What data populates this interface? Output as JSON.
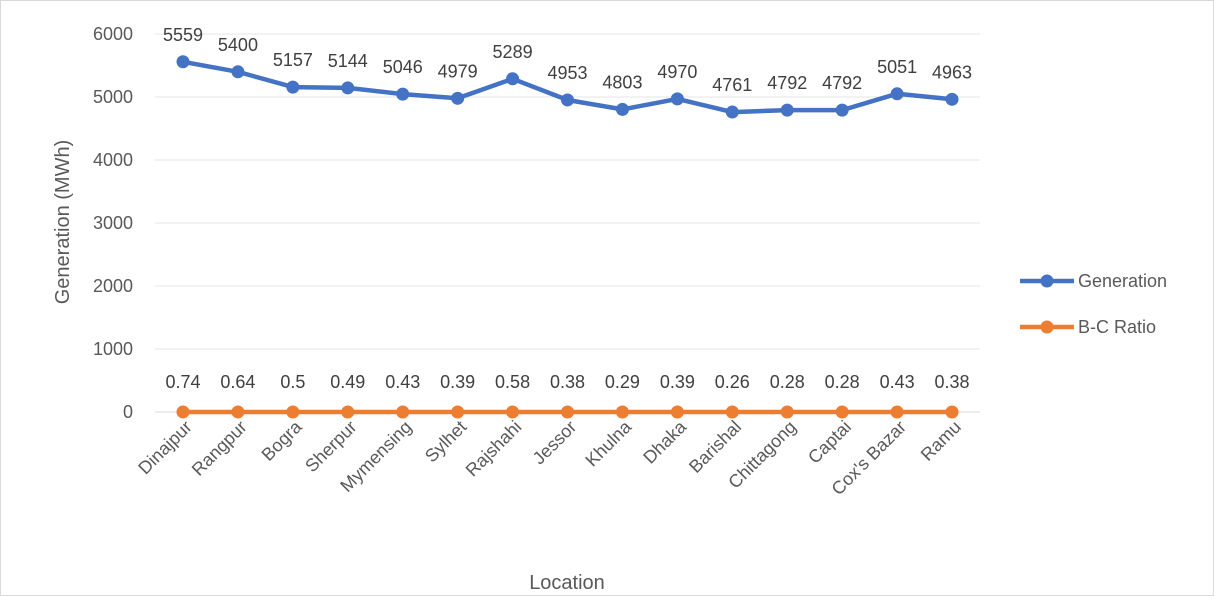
{
  "chart_data": {
    "type": "line",
    "title": "",
    "xlabel": "Location",
    "ylabel": "Generation (MWh)",
    "ylim": [
      0,
      6000
    ],
    "yticks": [
      0,
      1000,
      2000,
      3000,
      4000,
      5000,
      6000
    ],
    "grid": "horizontal",
    "legend_position": "right",
    "categories": [
      "Dinajpur",
      "Rangpur",
      "Bogra",
      "Sherpur",
      "Mymensing",
      "Sylhet",
      "Rajshahi",
      "Jessor",
      "Khulna",
      "Dhaka",
      "Barishal",
      "Chittagong",
      "Captai",
      "Cox's Bazar",
      "Ramu"
    ],
    "series": [
      {
        "name": "Generation",
        "color": "#4472c4",
        "values": [
          5559,
          5400,
          5157,
          5144,
          5046,
          4979,
          5289,
          4953,
          4803,
          4970,
          4761,
          4792,
          4792,
          5051,
          4963
        ],
        "labels": [
          "5559",
          "5400",
          "5157",
          "5144",
          "5046",
          "4979",
          "5289",
          "4953",
          "4803",
          "4970",
          "4761",
          "4792",
          "4792",
          "5051",
          "4963"
        ]
      },
      {
        "name": "B-C Ratio",
        "color": "#ed7d31",
        "values": [
          0.74,
          0.64,
          0.5,
          0.49,
          0.43,
          0.39,
          0.58,
          0.38,
          0.29,
          0.39,
          0.26,
          0.28,
          0.28,
          0.43,
          0.38
        ],
        "labels": [
          "0.74",
          "0.64",
          "0.5",
          "0.49",
          "0.43",
          "0.39",
          "0.58",
          "0.38",
          "0.29",
          "0.39",
          "0.26",
          "0.28",
          "0.28",
          "0.43",
          "0.38"
        ]
      }
    ]
  }
}
